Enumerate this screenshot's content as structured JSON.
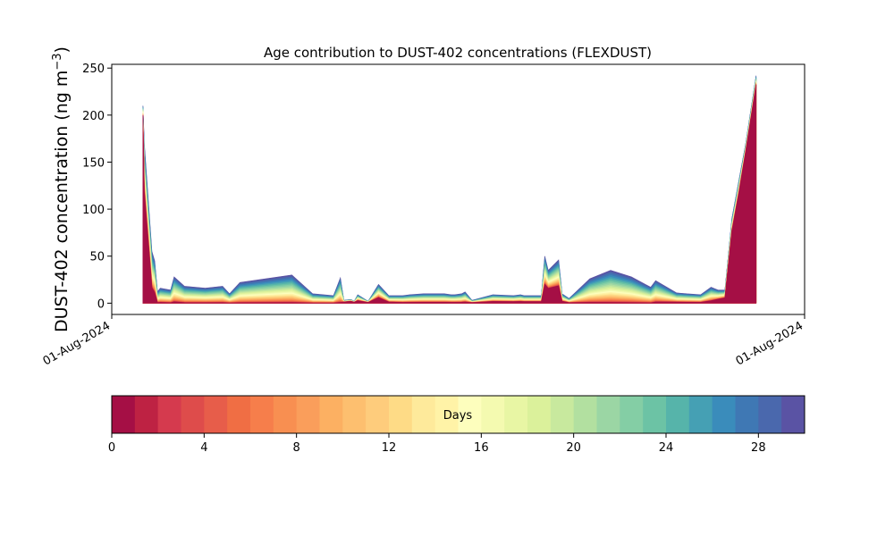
{
  "chart_data": {
    "type": "area",
    "title": "Age contribution to DUST-402 concentrations (FLEXDUST)",
    "ylabel_main": "DUST-402 concentration (ng m",
    "ylabel_sup": "−3",
    "ylabel_close": ")",
    "xlabel": "",
    "x_tick_labels": [
      "01-Aug-2024",
      "01-Aug-2024"
    ],
    "ylim": [
      -12,
      254
    ],
    "y_ticks": [
      0,
      50,
      100,
      150,
      200,
      250
    ],
    "x_range": [
      0,
      100
    ],
    "grid": false,
    "note": "Stacked area of contributions by age in days; colorbar below",
    "x": [
      4.5,
      4.7,
      5.8,
      6.2,
      6.6,
      7.0,
      8.5,
      9.0,
      10.5,
      13.5,
      16.0,
      17.0,
      18.5,
      26.0,
      29.0,
      32.0,
      33.0,
      33.5,
      34.5,
      35.0,
      35.5,
      37.0,
      38.5,
      40.0,
      42.0,
      43.0,
      45.0,
      48.0,
      49.0,
      49.5,
      50.5,
      51.0,
      52.0,
      55.0,
      58.0,
      59.0,
      59.5,
      61.0,
      62.0,
      62.5,
      63.0,
      64.5,
      65.0,
      66.0,
      69.0,
      72.0,
      75.0,
      77.0,
      77.8,
      78.5,
      81.5,
      83.0,
      85.0,
      86.5,
      87.5,
      88.5,
      89.5,
      90.5,
      91.5,
      93.0
    ],
    "totals": [
      210,
      170,
      55,
      45,
      12,
      16,
      14,
      28,
      18,
      16,
      18,
      10,
      22,
      30,
      10,
      8,
      27,
      3,
      4,
      2,
      9,
      2,
      20,
      8,
      8,
      9,
      10,
      10,
      9,
      9,
      10,
      12,
      3,
      9,
      8,
      9,
      8,
      8,
      8,
      50,
      35,
      46,
      10,
      5,
      26,
      35,
      28,
      20,
      17,
      24,
      11,
      10,
      9,
      17,
      14,
      14,
      90,
      130,
      170,
      242
    ],
    "youngest_fraction": [
      0.95,
      0.7,
      0.3,
      0.25,
      0.05,
      0.05,
      0.03,
      0.05,
      0.03,
      0.03,
      0.03,
      0.02,
      0.02,
      0.02,
      0.02,
      0.02,
      0.03,
      0.4,
      0.5,
      0.5,
      0.3,
      0.4,
      0.3,
      0.15,
      0.1,
      0.1,
      0.1,
      0.1,
      0.1,
      0.1,
      0.1,
      0.1,
      0.2,
      0.2,
      0.2,
      0.2,
      0.2,
      0.2,
      0.2,
      0.4,
      0.45,
      0.4,
      0.2,
      0.1,
      0.03,
      0.02,
      0.02,
      0.02,
      0.02,
      0.05,
      0.1,
      0.1,
      0.1,
      0.15,
      0.3,
      0.4,
      0.85,
      0.9,
      0.95,
      0.96
    ],
    "colorbar": {
      "label": "Days",
      "range": [
        0,
        30
      ],
      "ticks": [
        0,
        4,
        8,
        12,
        16,
        20,
        24,
        28
      ],
      "colors": [
        "#a50f45",
        "#be2243",
        "#d53a4e",
        "#de4c4b",
        "#e75d4a",
        "#f06e44",
        "#f67e4b",
        "#f88f51",
        "#fa9e5b",
        "#fcb062",
        "#fdbf6f",
        "#fecc7c",
        "#fedb86",
        "#feea9b",
        "#fff3a7",
        "#fdfebd",
        "#f4fab0",
        "#e8f6a4",
        "#dbf19b",
        "#c8e99e",
        "#b2e0a0",
        "#9bd6a4",
        "#84cea5",
        "#6cc3a5",
        "#56b4aa",
        "#45a0b4",
        "#3a8cbb",
        "#3f78b4",
        "#4a68ad",
        "#5a53a4"
      ]
    }
  }
}
